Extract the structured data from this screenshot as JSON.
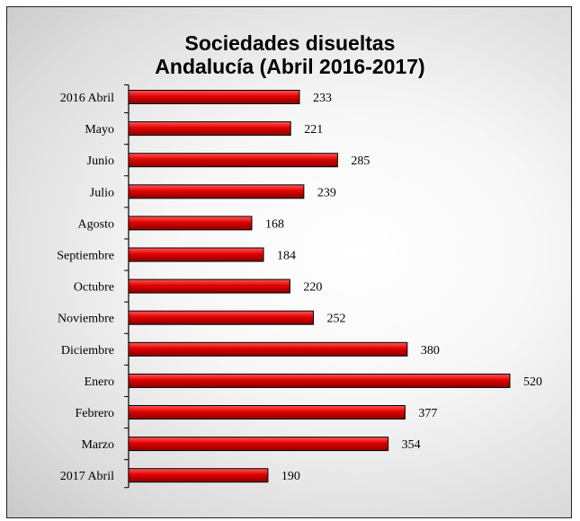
{
  "chart_data": {
    "type": "bar",
    "orientation": "horizontal",
    "title": "Sociedades disueltas",
    "subtitle": "Andalucía (Abril 2016-2017)",
    "categories": [
      "2016 Abril",
      "Mayo",
      "Junio",
      "Julio",
      "Agosto",
      "Septiembre",
      "Octubre",
      "Noviembre",
      "Diciembre",
      "Enero",
      "Febrero",
      "Marzo",
      "2017 Abril"
    ],
    "values": [
      233,
      221,
      285,
      239,
      168,
      184,
      220,
      252,
      380,
      520,
      377,
      354,
      190
    ],
    "xlabel": "",
    "ylabel": "",
    "xlim": [
      0,
      520
    ],
    "grid": false,
    "legend": "none",
    "colors": {
      "bar": "#e00000",
      "bar_edge": "#000000"
    }
  }
}
